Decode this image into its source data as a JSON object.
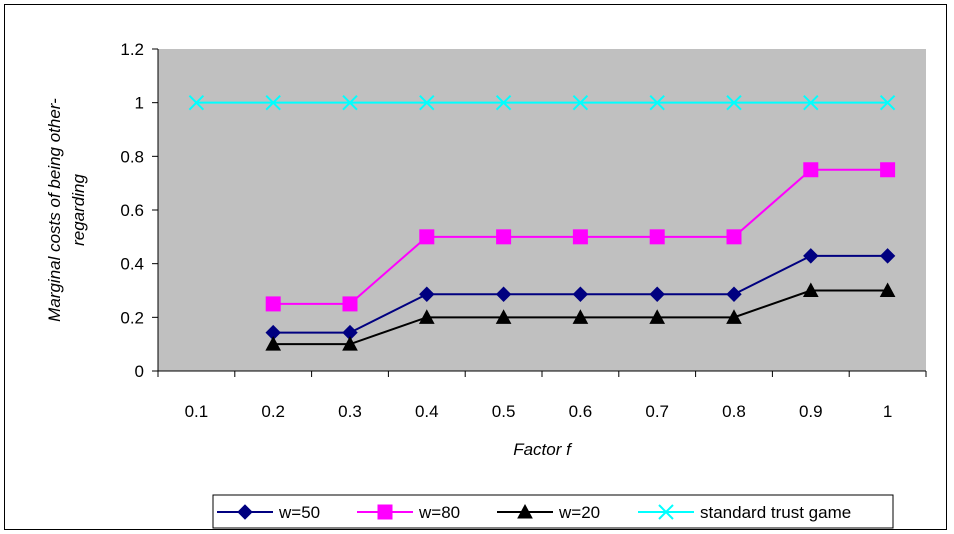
{
  "chart_data": {
    "type": "line",
    "categories": [
      "0.1",
      "0.2",
      "0.3",
      "0.4",
      "0.5",
      "0.6",
      "0.7",
      "0.8",
      "0.9",
      "1"
    ],
    "xlabel": "Factor f",
    "ylabel_line1": "Marginal costs of being other-",
    "ylabel_line2": "regarding",
    "ylim": [
      0,
      1.2
    ],
    "yticks": [
      "0",
      "0.2",
      "0.4",
      "0.6",
      "0.8",
      "1",
      "1.2"
    ],
    "ytick_values": [
      0,
      0.2,
      0.4,
      0.6,
      0.8,
      1,
      1.2
    ],
    "grid": false,
    "plot_background": "#c0c0c0",
    "legend_position": "bottom",
    "series": [
      {
        "name": "w=50",
        "color": "#000080",
        "marker": "diamond",
        "values": [
          null,
          0.143,
          0.143,
          0.286,
          0.286,
          0.286,
          0.286,
          0.286,
          0.429,
          0.429
        ]
      },
      {
        "name": "w=80",
        "color": "#ff00ff",
        "marker": "square",
        "values": [
          null,
          0.25,
          0.25,
          0.5,
          0.5,
          0.5,
          0.5,
          0.5,
          0.75,
          0.75
        ]
      },
      {
        "name": "w=20",
        "color": "#000000",
        "marker": "triangle",
        "values": [
          null,
          0.1,
          0.1,
          0.2,
          0.2,
          0.2,
          0.2,
          0.2,
          0.3,
          0.3
        ]
      },
      {
        "name": "standard trust game",
        "color": "#00ffff",
        "marker": "x",
        "values": [
          1,
          1,
          1,
          1,
          1,
          1,
          1,
          1,
          1,
          1
        ]
      }
    ]
  }
}
